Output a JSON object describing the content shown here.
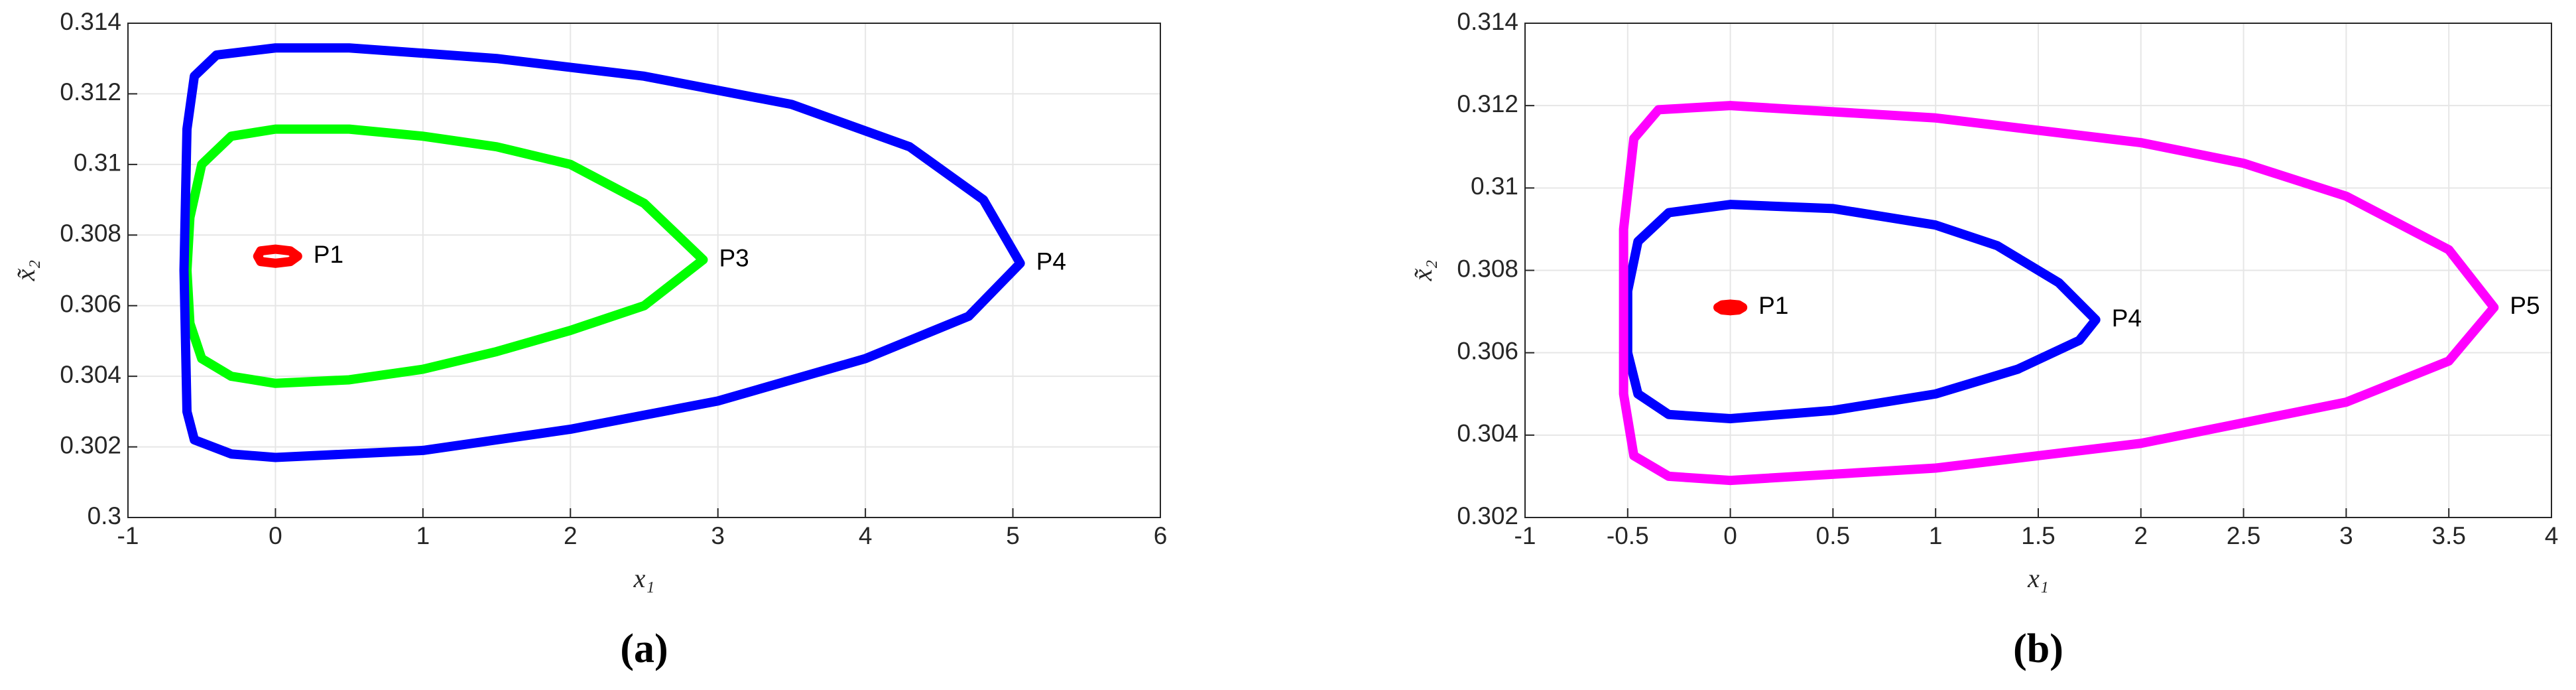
{
  "chart_data": [
    {
      "type": "line",
      "panel": "(a)",
      "xlabel": "x₁",
      "ylabel": "x̃₂",
      "xlim": [
        -1,
        6
      ],
      "xticks": [
        -1,
        0,
        1,
        2,
        3,
        4,
        5,
        6
      ],
      "ylim": [
        0.3,
        0.314
      ],
      "yticks": [
        0.3,
        0.302,
        0.304,
        0.306,
        0.308,
        0.31,
        0.312,
        0.314
      ],
      "grid": true,
      "series": [
        {
          "name": "P1",
          "color": "#ff0000",
          "x": [
            0.15,
            0.1,
            0,
            -0.1,
            -0.12,
            -0.1,
            0,
            0.1,
            0.15
          ],
          "values": [
            0.3074,
            0.30755,
            0.3076,
            0.30755,
            0.3074,
            0.30725,
            0.3072,
            0.30725,
            0.3074
          ]
        },
        {
          "name": "P3",
          "color": "#00ff00",
          "x": [
            2.9,
            2.5,
            2,
            1.5,
            1,
            0.5,
            0,
            -0.3,
            -0.5,
            -0.58,
            -0.6,
            -0.58,
            -0.5,
            -0.3,
            0,
            0.5,
            1,
            1.5,
            2,
            2.5,
            2.9
          ],
          "values": [
            0.3073,
            0.3089,
            0.31,
            0.3105,
            0.3108,
            0.311,
            0.311,
            0.3108,
            0.31,
            0.3085,
            0.307,
            0.3055,
            0.3045,
            0.304,
            0.3038,
            0.3039,
            0.3042,
            0.3047,
            0.3053,
            0.306,
            0.3073
          ]
        },
        {
          "name": "P4",
          "color": "#0000ff",
          "x": [
            5.05,
            4.8,
            4.3,
            3.5,
            2.5,
            1.5,
            0.5,
            0,
            -0.4,
            -0.55,
            -0.6,
            -0.62,
            -0.6,
            -0.55,
            -0.3,
            0,
            1,
            2,
            3,
            4,
            4.7,
            5.05
          ],
          "values": [
            0.3072,
            0.309,
            0.3105,
            0.3117,
            0.3125,
            0.313,
            0.3133,
            0.3133,
            0.3131,
            0.3125,
            0.311,
            0.307,
            0.303,
            0.3022,
            0.3018,
            0.3017,
            0.3019,
            0.3025,
            0.3033,
            0.3045,
            0.3057,
            0.3072
          ]
        }
      ]
    },
    {
      "type": "line",
      "panel": "(b)",
      "xlabel": "x₁",
      "ylabel": "x̃₂",
      "xlim": [
        -1,
        4
      ],
      "xticks": [
        -1,
        -0.5,
        0,
        0.5,
        1,
        1.5,
        2,
        2.5,
        3,
        3.5,
        4
      ],
      "ylim": [
        0.302,
        0.314
      ],
      "yticks": [
        0.302,
        0.304,
        0.306,
        0.308,
        0.31,
        0.312,
        0.314
      ],
      "grid": true,
      "series": [
        {
          "name": "P1",
          "color": "#ff0000",
          "x": [
            0.06,
            0.04,
            0,
            -0.04,
            -0.06,
            -0.04,
            0,
            0.04,
            0.06
          ],
          "values": [
            0.3071,
            0.30716,
            0.30718,
            0.30716,
            0.3071,
            0.30704,
            0.30702,
            0.30704,
            0.3071
          ]
        },
        {
          "name": "P4",
          "color": "#0000ff",
          "x": [
            1.78,
            1.6,
            1.3,
            1,
            0.5,
            0,
            -0.3,
            -0.45,
            -0.5,
            -0.5,
            -0.45,
            -0.3,
            0,
            0.5,
            1,
            1.4,
            1.7,
            1.78
          ],
          "values": [
            0.3068,
            0.3077,
            0.3086,
            0.3091,
            0.3095,
            0.3096,
            0.3094,
            0.3087,
            0.3075,
            0.306,
            0.305,
            0.3045,
            0.3044,
            0.3046,
            0.305,
            0.3056,
            0.3063,
            0.3068
          ]
        },
        {
          "name": "P5",
          "color": "#ff00ff",
          "x": [
            3.72,
            3.5,
            3,
            2.5,
            2,
            1,
            0,
            -0.35,
            -0.47,
            -0.52,
            -0.52,
            -0.47,
            -0.3,
            0,
            1,
            2,
            3,
            3.5,
            3.72
          ],
          "values": [
            0.3071,
            0.3085,
            0.3098,
            0.3106,
            0.3111,
            0.3117,
            0.312,
            0.3119,
            0.3112,
            0.309,
            0.305,
            0.3035,
            0.303,
            0.3029,
            0.3032,
            0.3038,
            0.3048,
            0.3058,
            0.3071
          ]
        }
      ]
    }
  ]
}
